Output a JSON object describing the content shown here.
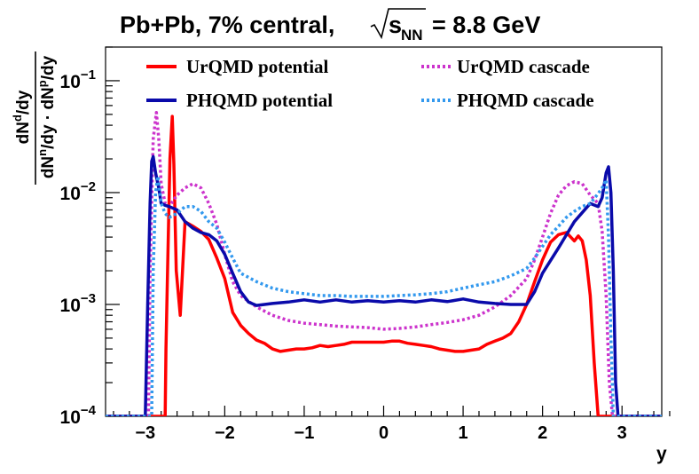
{
  "chart_data": {
    "type": "line",
    "title": {
      "prefix": "Pb+Pb, 7% central,",
      "sqrt_s": "s",
      "sqrt_sub": "NN",
      "suffix": "= 8.8 GeV"
    },
    "xlabel": "y",
    "ylabel": {
      "numerator": "dN",
      "numerator_sup": "d",
      "numerator_tail": "/dy",
      "denominator_a": "dN",
      "denominator_a_sup": "n",
      "denominator_a_tail": "/dy · dN",
      "denominator_b_sup": "p",
      "denominator_b_tail": "/dy"
    },
    "xlim": [
      -3.5,
      3.5
    ],
    "ylim": [
      0.0001,
      0.2
    ],
    "yscale": "log",
    "grid": false,
    "legend_position": "top",
    "x_ticks": [
      {
        "value": -3,
        "label": "−3"
      },
      {
        "value": -2,
        "label": "−2"
      },
      {
        "value": -1,
        "label": "−1"
      },
      {
        "value": 0,
        "label": "0"
      },
      {
        "value": 1,
        "label": "1"
      },
      {
        "value": 2,
        "label": "2"
      },
      {
        "value": 3,
        "label": "3"
      }
    ],
    "y_ticks": [
      {
        "value": 0.1,
        "base": "10",
        "exp": "−1"
      },
      {
        "value": 0.01,
        "base": "10",
        "exp": "−2"
      },
      {
        "value": 0.001,
        "base": "10",
        "exp": "−3"
      },
      {
        "value": 0.0001,
        "base": "10",
        "exp": "−4"
      }
    ],
    "series": [
      {
        "name": "UrQMD potential",
        "color": "#ff0000",
        "dash": "solid",
        "x": [
          -3.5,
          -2.75,
          -2.74,
          -2.72,
          -2.69,
          -2.66,
          -2.64,
          -2.61,
          -2.56,
          -2.5,
          -2.4,
          -2.3,
          -2.2,
          -2.1,
          -2.0,
          -1.9,
          -1.8,
          -1.7,
          -1.6,
          -1.5,
          -1.4,
          -1.3,
          -1.2,
          -1.1,
          -1.0,
          -0.9,
          -0.8,
          -0.7,
          -0.6,
          -0.5,
          -0.4,
          -0.3,
          -0.2,
          -0.1,
          0.0,
          0.1,
          0.2,
          0.3,
          0.4,
          0.5,
          0.6,
          0.7,
          0.8,
          0.9,
          1.0,
          1.1,
          1.2,
          1.3,
          1.4,
          1.5,
          1.6,
          1.7,
          1.8,
          1.9,
          2.0,
          2.1,
          2.2,
          2.3,
          2.4,
          2.45,
          2.5,
          2.55,
          2.6,
          2.65,
          2.7,
          2.72,
          3.5
        ],
        "y": [
          0.0001,
          0.0001,
          0.0004,
          0.002,
          0.02,
          0.048,
          0.018,
          0.002,
          0.0008,
          0.0055,
          0.005,
          0.0045,
          0.0038,
          0.0026,
          0.0017,
          0.00085,
          0.00065,
          0.00055,
          0.00048,
          0.00045,
          0.0004,
          0.00038,
          0.00039,
          0.0004,
          0.0004,
          0.00041,
          0.00043,
          0.00042,
          0.00043,
          0.00044,
          0.00046,
          0.00046,
          0.00046,
          0.00046,
          0.00046,
          0.00047,
          0.00047,
          0.00045,
          0.00044,
          0.00043,
          0.00042,
          0.0004,
          0.00039,
          0.00038,
          0.00038,
          0.00039,
          0.0004,
          0.00044,
          0.00047,
          0.0005,
          0.00055,
          0.0007,
          0.001,
          0.0016,
          0.0025,
          0.0036,
          0.0042,
          0.0044,
          0.0037,
          0.0041,
          0.0037,
          0.0025,
          0.0012,
          0.0003,
          0.0001,
          0.0001,
          0.0001
        ]
      },
      {
        "name": "UrQMD cascade",
        "color": "#cc33cc",
        "dash": "dotted",
        "x": [
          -3.5,
          -2.96,
          -2.94,
          -2.9,
          -2.86,
          -2.83,
          -2.8,
          -2.75,
          -2.7,
          -2.6,
          -2.5,
          -2.4,
          -2.3,
          -2.2,
          -2.1,
          -2.0,
          -1.9,
          -1.8,
          -1.6,
          -1.4,
          -1.2,
          -1.0,
          -0.8,
          -0.6,
          -0.4,
          -0.2,
          0.0,
          0.2,
          0.4,
          0.6,
          0.8,
          1.0,
          1.2,
          1.4,
          1.6,
          1.8,
          1.9,
          2.0,
          2.1,
          2.2,
          2.3,
          2.4,
          2.5,
          2.6,
          2.7,
          2.75,
          2.8,
          2.84,
          2.88,
          3.5
        ],
        "y": [
          0.0001,
          0.0001,
          0.002,
          0.03,
          0.052,
          0.03,
          0.012,
          0.008,
          0.0075,
          0.0095,
          0.011,
          0.012,
          0.011,
          0.008,
          0.0052,
          0.0028,
          0.0016,
          0.0012,
          0.00095,
          0.0008,
          0.00072,
          0.00068,
          0.00066,
          0.00064,
          0.00063,
          0.00062,
          0.0006,
          0.00061,
          0.00063,
          0.00066,
          0.00069,
          0.00073,
          0.0008,
          0.00095,
          0.0012,
          0.0017,
          0.0025,
          0.004,
          0.0065,
          0.0095,
          0.0115,
          0.0125,
          0.012,
          0.0095,
          0.008,
          0.0045,
          0.0012,
          0.0002,
          0.0001,
          0.0001
        ]
      },
      {
        "name": "PHQMD potential",
        "color": "#0a0aaa",
        "dash": "solid",
        "x": [
          -3.5,
          -3.0,
          -2.97,
          -2.94,
          -2.92,
          -2.9,
          -2.87,
          -2.83,
          -2.8,
          -2.75,
          -2.7,
          -2.6,
          -2.5,
          -2.4,
          -2.3,
          -2.2,
          -2.1,
          -2.0,
          -1.9,
          -1.8,
          -1.7,
          -1.6,
          -1.4,
          -1.2,
          -1.0,
          -0.8,
          -0.6,
          -0.4,
          -0.2,
          0.0,
          0.2,
          0.4,
          0.6,
          0.8,
          1.0,
          1.2,
          1.4,
          1.6,
          1.7,
          1.8,
          1.9,
          2.0,
          2.2,
          2.4,
          2.6,
          2.7,
          2.75,
          2.8,
          2.83,
          2.86,
          2.89,
          2.92,
          2.95,
          3.5
        ],
        "y": [
          0.0001,
          0.0001,
          0.001,
          0.008,
          0.019,
          0.021,
          0.015,
          0.011,
          0.008,
          0.0077,
          0.0075,
          0.007,
          0.0055,
          0.0048,
          0.0044,
          0.0042,
          0.0037,
          0.0028,
          0.0019,
          0.0013,
          0.00105,
          0.00098,
          0.00102,
          0.00105,
          0.0011,
          0.00105,
          0.0011,
          0.00105,
          0.00108,
          0.00105,
          0.00108,
          0.00105,
          0.0011,
          0.00106,
          0.00112,
          0.00105,
          0.00102,
          0.001,
          0.001,
          0.001,
          0.0013,
          0.0019,
          0.0032,
          0.0055,
          0.008,
          0.0075,
          0.009,
          0.015,
          0.017,
          0.01,
          0.002,
          0.0002,
          0.0001,
          0.0001
        ]
      },
      {
        "name": "PHQMD cascade",
        "color": "#3399ee",
        "dash": "dotted",
        "x": [
          -3.5,
          -2.92,
          -2.9,
          -2.87,
          -2.84,
          -2.8,
          -2.75,
          -2.7,
          -2.6,
          -2.5,
          -2.4,
          -2.3,
          -2.2,
          -2.1,
          -2.0,
          -1.9,
          -1.8,
          -1.6,
          -1.4,
          -1.2,
          -1.0,
          -0.8,
          -0.6,
          -0.4,
          -0.2,
          0.0,
          0.2,
          0.4,
          0.6,
          0.8,
          1.0,
          1.2,
          1.4,
          1.6,
          1.8,
          1.9,
          2.0,
          2.1,
          2.2,
          2.3,
          2.4,
          2.5,
          2.6,
          2.7,
          2.75,
          2.8,
          2.83,
          2.86,
          2.89,
          3.5
        ],
        "y": [
          0.0001,
          0.0001,
          0.002,
          0.01,
          0.014,
          0.008,
          0.0065,
          0.006,
          0.0065,
          0.0075,
          0.0075,
          0.0068,
          0.0055,
          0.0048,
          0.0036,
          0.0026,
          0.0019,
          0.0016,
          0.0014,
          0.0013,
          0.00125,
          0.0012,
          0.0012,
          0.00118,
          0.00118,
          0.00118,
          0.0012,
          0.00122,
          0.00125,
          0.0013,
          0.0014,
          0.0015,
          0.0016,
          0.0018,
          0.0021,
          0.0026,
          0.0033,
          0.0042,
          0.005,
          0.006,
          0.0068,
          0.0075,
          0.008,
          0.0098,
          0.011,
          0.013,
          0.004,
          0.0005,
          0.0001,
          0.0001
        ]
      }
    ]
  }
}
